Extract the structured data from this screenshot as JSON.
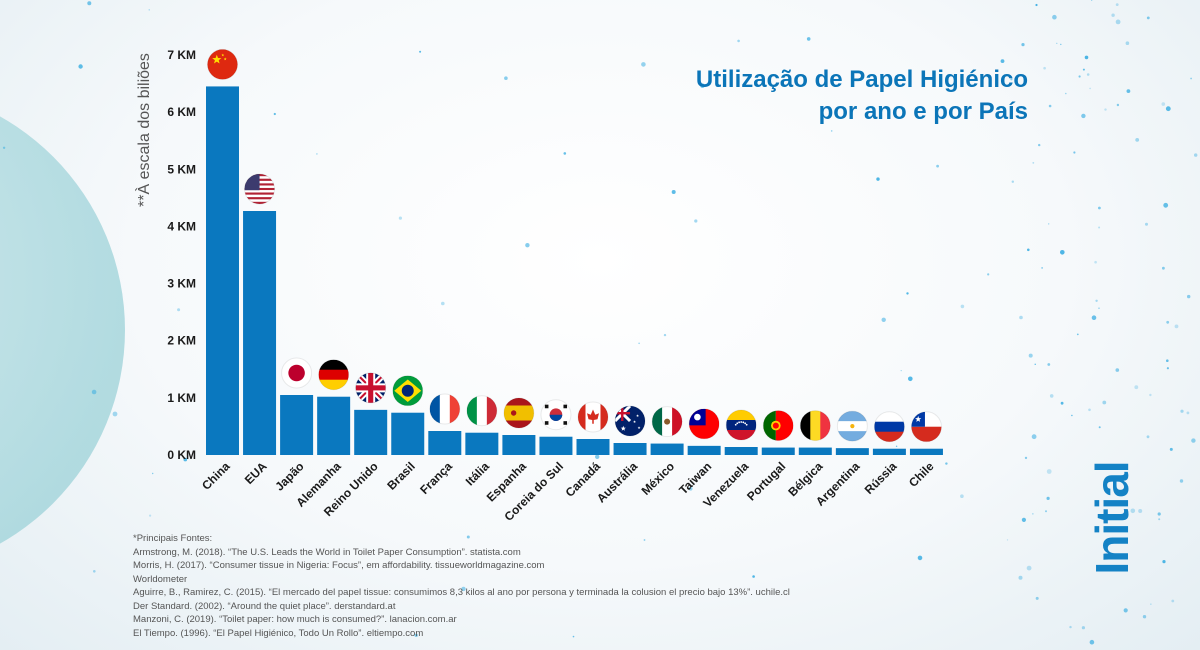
{
  "page": {
    "title_line1": "Utilização de Papel Higiénico",
    "title_line2": "por ano e por País",
    "scale_note": "**À escala dos biliões",
    "logo_text": "Initial",
    "sources": [
      "*Principais Fontes:",
      "Armstrong, M. (2018). “The U.S. Leads the World in Toilet Paper Consumption”. statista.com",
      "Morris, H. (2017). “Consumer tissue in Nigeria: Focus”, em affordability. tissueworldmagazine.com",
      "Worldometer",
      "Aguirre, B., Ramirez, C. (2015). “El mercado del papel tissue: consumimos 8,3 kilos al ano por persona y terminada la colusion el precio bajo 13%”. uchile.cl",
      "Der Standard. (2002). “Around the quiet place”. derstandard.at",
      "Manzoni, C. (2019). “Toilet paper: how much is consumed?”. lanacion.com.ar",
      "El Tiempo. (1996). “El Papel Higiénico, Todo Un Rollo”. eltiempo.com"
    ],
    "colors": {
      "bar": "#0a78bf",
      "title": "#0b75b8",
      "logo": "#1482c5"
    }
  },
  "chart_data": {
    "type": "bar",
    "ylim": [
      0,
      7
    ],
    "yticks": [
      "0 KM",
      "1 KM",
      "2 KM",
      "3 KM",
      "4 KM",
      "5 KM",
      "6 KM",
      "7 KM"
    ],
    "ylabel": "**À escala dos biliões",
    "grid": false,
    "categories": [
      "China",
      "EUA",
      "Japão",
      "Alemanha",
      "Reino Unido",
      "Brasil",
      "França",
      "Itália",
      "Espanha",
      "Coreia do Sul",
      "Canadá",
      "Austrália",
      "México",
      "Taiwan",
      "Venezuela",
      "Portugal",
      "Bélgica",
      "Argentina",
      "Rússia",
      "Chile"
    ],
    "values": [
      6.45,
      4.27,
      1.05,
      1.02,
      0.79,
      0.74,
      0.42,
      0.39,
      0.35,
      0.32,
      0.28,
      0.21,
      0.2,
      0.16,
      0.14,
      0.13,
      0.13,
      0.12,
      0.11,
      0.11
    ],
    "flags": [
      "china",
      "usa",
      "japan",
      "germany",
      "uk",
      "brazil",
      "france",
      "italy",
      "spain",
      "south-korea",
      "canada",
      "australia",
      "mexico",
      "taiwan",
      "venezuela",
      "portugal",
      "belgium",
      "argentina",
      "russia",
      "chile"
    ]
  }
}
